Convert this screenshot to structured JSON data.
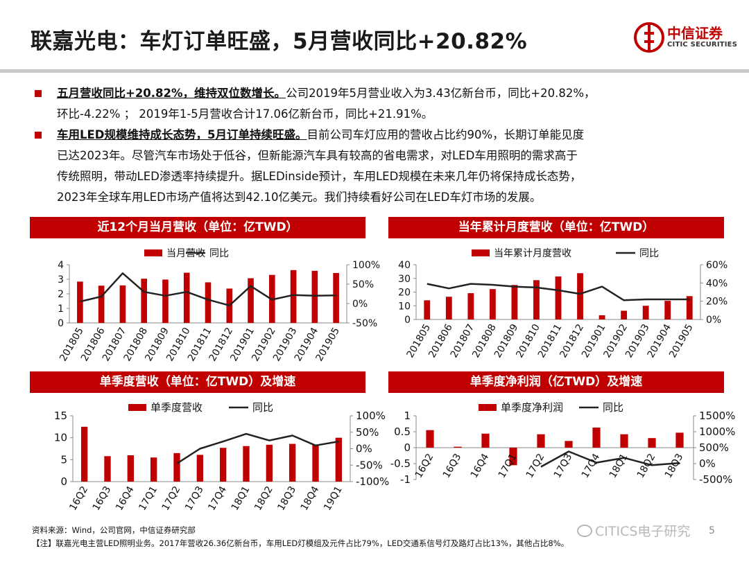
{
  "page": {
    "title": "联嘉光电：车灯订单旺盛，5月营收同比+20.82%",
    "logo_cn": "中信证券",
    "logo_en": "CITIC SECURITIES",
    "accent_color": "#c00000",
    "page_number": "5"
  },
  "bullets": [
    {
      "lead": "五月营收同比+20.82%，维持双位数增长。",
      "lines": [
        "公司2019年5月营业收入为3.43亿新台币，同比+20.82%，",
        "环比-4.22% ； 2019年1-5月营收合计17.06亿新台币，同比+21.91%。"
      ]
    },
    {
      "lead": "车用LED规模维持成长态势，5月订单持续旺盛。",
      "lines": [
        "目前公司车灯应用的营收占比约90%，长期订单能见度",
        "已达2023年。尽管汽车市场处于低谷，但新能源汽车具有较高的省电需求，对LED车用照明的需求高于",
        "传统照明，带动LED渗透率持续提升。据LEDinside预计，车用LED规模在未来几年仍将保持成长态势，",
        "2023年全球车用LED市场产值将达到42.10亿美元。我们持续看好公司在LED车灯市场的发展。"
      ]
    }
  ],
  "chart_data": [
    {
      "type": "bar",
      "title": "近12个月当月营收（单位：亿TWD）",
      "categories": [
        "201805",
        "201806",
        "201807",
        "201808",
        "201809",
        "201810",
        "201811",
        "201812",
        "201901",
        "201902",
        "201903",
        "201904",
        "201905"
      ],
      "series": [
        {
          "name": "当月营收",
          "axis": "left",
          "kind": "bar",
          "color": "#c00000",
          "values": [
            2.84,
            2.56,
            2.58,
            3.04,
            2.98,
            3.45,
            2.79,
            2.36,
            3.07,
            3.3,
            3.63,
            3.58,
            3.43
          ]
        },
        {
          "name": "同比",
          "axis": "right",
          "kind": "line",
          "color": "#222222",
          "values": [
            0.05,
            0.18,
            0.78,
            0.3,
            0.2,
            0.3,
            0.1,
            -0.05,
            0.45,
            0.1,
            0.22,
            0.2,
            0.21
          ]
        }
      ],
      "left_axis": {
        "min": 0,
        "max": 4,
        "ticks": [
          "0",
          "1",
          "2",
          "3",
          "4"
        ]
      },
      "right_axis": {
        "min": -0.5,
        "max": 1.0,
        "ticks": [
          "-50%",
          "0%",
          "50%",
          "100%"
        ]
      },
      "grid": false,
      "legend": "top"
    },
    {
      "type": "bar",
      "title": "当年累计月度营收（单位：亿TWD）",
      "categories": [
        "201805",
        "201806",
        "201807",
        "201808",
        "201809",
        "201810",
        "201811",
        "201812",
        "201901",
        "201902",
        "201903",
        "201904",
        "201905"
      ],
      "series": [
        {
          "name": "当年累计月度营收",
          "axis": "left",
          "kind": "bar",
          "color": "#c00000",
          "values": [
            14.0,
            16.6,
            19.2,
            22.2,
            25.2,
            28.7,
            31.4,
            33.8,
            3.07,
            6.37,
            10.0,
            13.6,
            17.06
          ]
        },
        {
          "name": "同比",
          "axis": "right",
          "kind": "line",
          "color": "#222222",
          "values": [
            0.39,
            0.34,
            0.39,
            0.38,
            0.36,
            0.35,
            0.32,
            0.28,
            0.36,
            0.21,
            0.22,
            0.22,
            0.22
          ]
        }
      ],
      "left_axis": {
        "min": 0,
        "max": 40,
        "ticks": [
          "0",
          "10",
          "20",
          "30",
          "40"
        ]
      },
      "right_axis": {
        "min": 0,
        "max": 0.6,
        "ticks": [
          "0%",
          "20%",
          "40%",
          "60%"
        ]
      },
      "grid": false,
      "legend": "top"
    },
    {
      "type": "bar",
      "title": "单季度营收（单位：亿TWD）及增速",
      "categories": [
        "16Q2",
        "16Q3",
        "16Q4",
        "17Q1",
        "17Q2",
        "17Q3",
        "17Q4",
        "18Q1",
        "18Q2",
        "18Q3",
        "18Q4",
        "19Q1"
      ],
      "series": [
        {
          "name": "单季度营收",
          "axis": "left",
          "kind": "bar",
          "color": "#c00000",
          "values": [
            12.5,
            5.8,
            6.0,
            5.5,
            6.5,
            6.1,
            7.7,
            8.1,
            8.4,
            8.6,
            8.4,
            10.0
          ]
        },
        {
          "name": "同比",
          "axis": "right",
          "kind": "line",
          "color": "#222222",
          "values": [
            null,
            null,
            null,
            null,
            -0.45,
            0.0,
            0.22,
            0.45,
            0.25,
            0.4,
            0.1,
            0.22
          ]
        }
      ],
      "left_axis": {
        "min": 0,
        "max": 15,
        "ticks": [
          "0",
          "5",
          "10",
          "15"
        ]
      },
      "right_axis": {
        "min": -1.0,
        "max": 1.0,
        "ticks": [
          "-100%",
          "-50%",
          "0%",
          "50%",
          "100%"
        ]
      },
      "grid": false,
      "legend": "top"
    },
    {
      "type": "bar",
      "title": "单季度净利润（亿TWD）及增速",
      "categories": [
        "16Q2",
        "16Q3",
        "16Q4",
        "17Q1",
        "17Q2",
        "17Q3",
        "17Q4",
        "18Q1",
        "18Q2",
        "18Q3"
      ],
      "series": [
        {
          "name": "单季度净利润",
          "axis": "left",
          "kind": "bar",
          "color": "#c00000",
          "values": [
            0.55,
            0.03,
            0.44,
            -0.55,
            0.42,
            0.21,
            0.63,
            0.42,
            0.3,
            0.47
          ]
        },
        {
          "name": "同比",
          "axis": "right",
          "kind": "line",
          "color": "#222222",
          "values": [
            null,
            null,
            null,
            null,
            -1.0,
            3.8,
            0.3,
            1.8,
            -0.5,
            0.2
          ]
        }
      ],
      "left_axis": {
        "min": -1,
        "max": 1,
        "ticks": [
          "-1",
          "-0.5",
          "0",
          "0.5",
          "1"
        ]
      },
      "right_axis": {
        "min": -5,
        "max": 15,
        "ticks": [
          "-500%",
          "0%",
          "500%",
          "1000%",
          "1500%"
        ]
      },
      "grid": false,
      "legend": "top"
    }
  ],
  "footer": {
    "source": "资料来源：Wind，公司官网，中信证券研究部",
    "note": "【注】联嘉光电主营LED照明业务。2017年营收26.36亿新台币，车用LED灯模组及元件占比79%，LED交通系信号灯及路灯占比13%，其他占比8%。",
    "watermark": "CITICS电子研究"
  }
}
